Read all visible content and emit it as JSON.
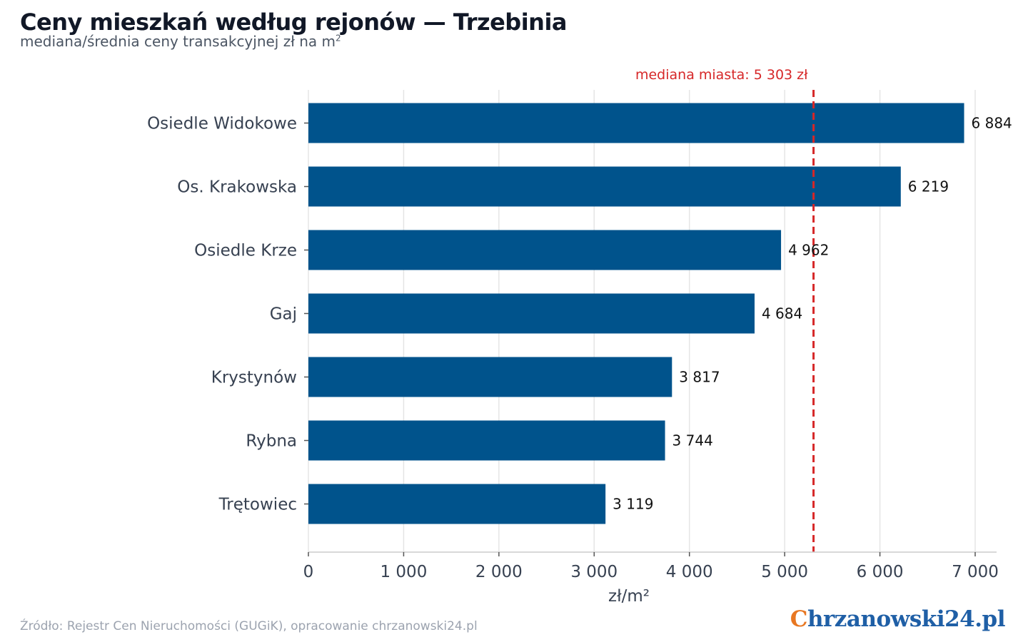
{
  "header": {
    "title": "Ceny mieszkań według rejonów — Trzebinia",
    "subtitle_main": "mediana/średnia ceny transakcyjnej zł na m",
    "subtitle_sup": "2"
  },
  "footer": {
    "source": "Źródło: Rejestr Cen Nieruchomości (GUGiK), opracowanie chrzanowski24.pl",
    "brand_first": "C",
    "brand_rest": "hrzanowski24.pl"
  },
  "colors": {
    "bar": "#00538c",
    "reference": "#d62728",
    "grid": "#e5e5e5",
    "brand_orange": "#e87722",
    "brand_blue": "#1f5fa6"
  },
  "chart_data": {
    "type": "bar",
    "orientation": "horizontal",
    "categories": [
      "Osiedle Widokowe",
      "Os. Krakowska",
      "Osiedle Krze",
      "Gaj",
      "Krystynów",
      "Rybna",
      "Trętowiec"
    ],
    "values": [
      6884,
      6219,
      4962,
      4684,
      3817,
      3744,
      3119
    ],
    "value_labels": [
      "6 884",
      "6 219",
      "4 962",
      "4 684",
      "3 817",
      "3 744",
      "3 119"
    ],
    "xlabel": "zł/m²",
    "ylabel": "",
    "xlim": [
      0,
      7000
    ],
    "ticks": [
      0,
      1000,
      2000,
      3000,
      4000,
      5000,
      6000,
      7000
    ],
    "tick_labels": [
      "0",
      "1 000",
      "2 000",
      "3 000",
      "4 000",
      "5 000",
      "6 000",
      "7 000"
    ],
    "reference_line": {
      "value": 5303,
      "label": "mediana miasta: 5 303 zł"
    },
    "grid": true
  }
}
